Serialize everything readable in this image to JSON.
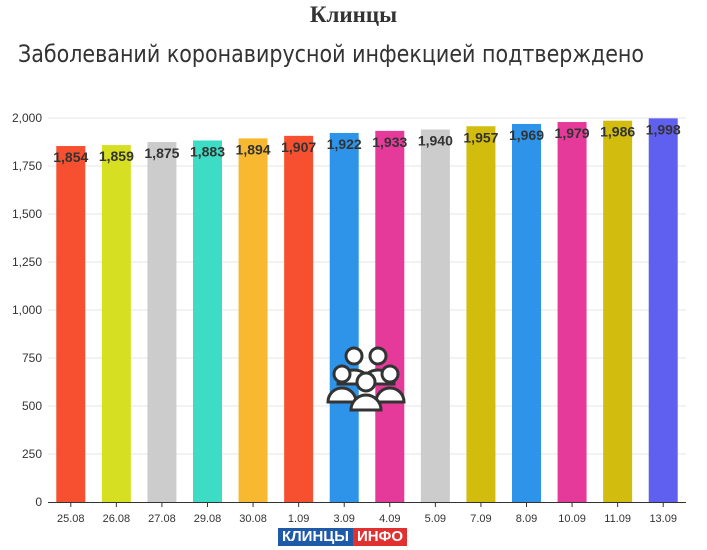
{
  "title": "Клинцы",
  "subtitle": "Заболеваний коронавирусной инфекцией подтверждено",
  "logo": {
    "part1": "КЛИНЦЫ",
    "part2": "ИНФО"
  },
  "icon": "people-group-icon",
  "chart_data": {
    "type": "bar",
    "categories": [
      "25.08",
      "26.08",
      "27.08",
      "29.08",
      "30.08",
      "1.09",
      "3.09",
      "4.09",
      "5.09",
      "7.09",
      "8.09",
      "10.09",
      "11.09",
      "13.09"
    ],
    "values": [
      1854,
      1859,
      1875,
      1883,
      1894,
      1907,
      1922,
      1933,
      1940,
      1957,
      1969,
      1979,
      1986,
      1998
    ],
    "value_labels": [
      "1,854",
      "1,859",
      "1,875",
      "1,883",
      "1,894",
      "1,907",
      "1,922",
      "1,933",
      "1,940",
      "1,957",
      "1,969",
      "1,979",
      "1,986",
      "1,998"
    ],
    "colors": [
      "#f65030",
      "#d6df22",
      "#cccccc",
      "#3ddcc4",
      "#f8b930",
      "#f65030",
      "#2e94ea",
      "#e63a9a",
      "#cccccc",
      "#d2bc0e",
      "#2e94ea",
      "#e63a9a",
      "#d2bc0e",
      "#6060f0"
    ],
    "ylim": [
      0,
      2000
    ],
    "yticks": [
      0,
      250,
      500,
      750,
      1000,
      1250,
      1500,
      1750,
      2000
    ],
    "ytick_labels": [
      "0",
      "250",
      "500",
      "750",
      "1,000",
      "1,250",
      "1,500",
      "1,750",
      "2,000"
    ],
    "xlabel": "",
    "ylabel": "",
    "grid": true
  }
}
